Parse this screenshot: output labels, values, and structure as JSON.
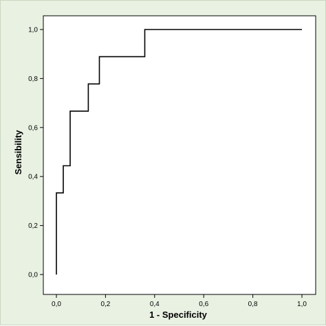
{
  "colors": {
    "background": "#e9f1e3",
    "plot_area": "#ffffff",
    "line": "#000000"
  },
  "chart_data": {
    "type": "line",
    "style": "step",
    "xlabel": "1 - Specificity",
    "ylabel": "Sensibility",
    "xlim": [
      0,
      1
    ],
    "ylim": [
      0,
      1
    ],
    "x_ticks": [
      "0,0",
      "0,2",
      "0,4",
      "0,6",
      "0,8",
      "1,0"
    ],
    "y_ticks": [
      "0,0",
      "0,2",
      "0,4",
      "0,6",
      "0,8",
      "1,0"
    ],
    "grid": false,
    "series": [
      {
        "x": [
          0.0,
          0.0,
          0.028,
          0.028,
          0.056,
          0.056,
          0.13,
          0.13,
          0.175,
          0.175,
          0.36,
          0.36,
          1.0
        ],
        "y": [
          0.0,
          0.333,
          0.333,
          0.444,
          0.444,
          0.667,
          0.667,
          0.778,
          0.778,
          0.889,
          0.889,
          1.0,
          1.0
        ]
      }
    ]
  }
}
